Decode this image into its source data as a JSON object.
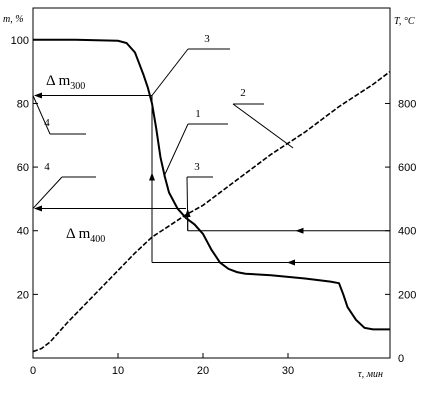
{
  "chart_data": {
    "type": "line",
    "title": "",
    "xlabel": "τ, мин",
    "ylabel_left": "m, %",
    "ylabel_right": "T, °C",
    "xlim": [
      0,
      42
    ],
    "ylim_left": [
      0,
      110
    ],
    "ylim_right": [
      0,
      1100
    ],
    "x_ticks": [
      0,
      10,
      20,
      30
    ],
    "y_ticks_left": [
      20,
      40,
      60,
      80,
      100
    ],
    "y_ticks_right": [
      0,
      200,
      400,
      600,
      800
    ],
    "grid": false,
    "series": [
      {
        "name": "1",
        "axis": "left",
        "style": "solid",
        "x": [
          0,
          5,
          10,
          11,
          12,
          13,
          13.5,
          14,
          14.5,
          15,
          15.5,
          16,
          17,
          18,
          19,
          20,
          21,
          22,
          23,
          24,
          25,
          28,
          32,
          35,
          36,
          36.5,
          37,
          38,
          39,
          40,
          42
        ],
        "y": [
          100,
          100,
          99.7,
          99,
          96,
          89,
          85,
          80,
          72,
          63,
          57,
          52,
          47,
          44,
          42,
          39,
          34,
          30,
          28,
          27,
          26.5,
          26,
          25,
          24,
          23.5,
          20,
          16,
          12,
          9.5,
          9,
          9
        ]
      },
      {
        "name": "2",
        "axis": "right",
        "style": "dashed",
        "x": [
          0,
          1,
          2,
          4,
          8,
          12,
          14,
          18,
          20,
          24,
          28,
          32,
          36,
          40,
          42
        ],
        "y": [
          20,
          30,
          50,
          110,
          220,
          330,
          380,
          450,
          480,
          560,
          640,
          710,
          790,
          860,
          900
        ]
      }
    ],
    "annotations": [
      {
        "label": "1",
        "points_to_series": "1"
      },
      {
        "label": "2",
        "points_to_series": "2"
      },
      {
        "label": "3",
        "at_x": 14
      },
      {
        "label": "3",
        "at_x": 18
      },
      {
        "label": "4",
        "at_y_left": 82.5
      },
      {
        "label": "4",
        "at_y_left": 47
      }
    ],
    "mass_losses": [
      {
        "label": "Δ m",
        "subscript": "300",
        "y_left": 82.5
      },
      {
        "label": "Δ m",
        "subscript": "400",
        "y_left": 47
      }
    ]
  }
}
